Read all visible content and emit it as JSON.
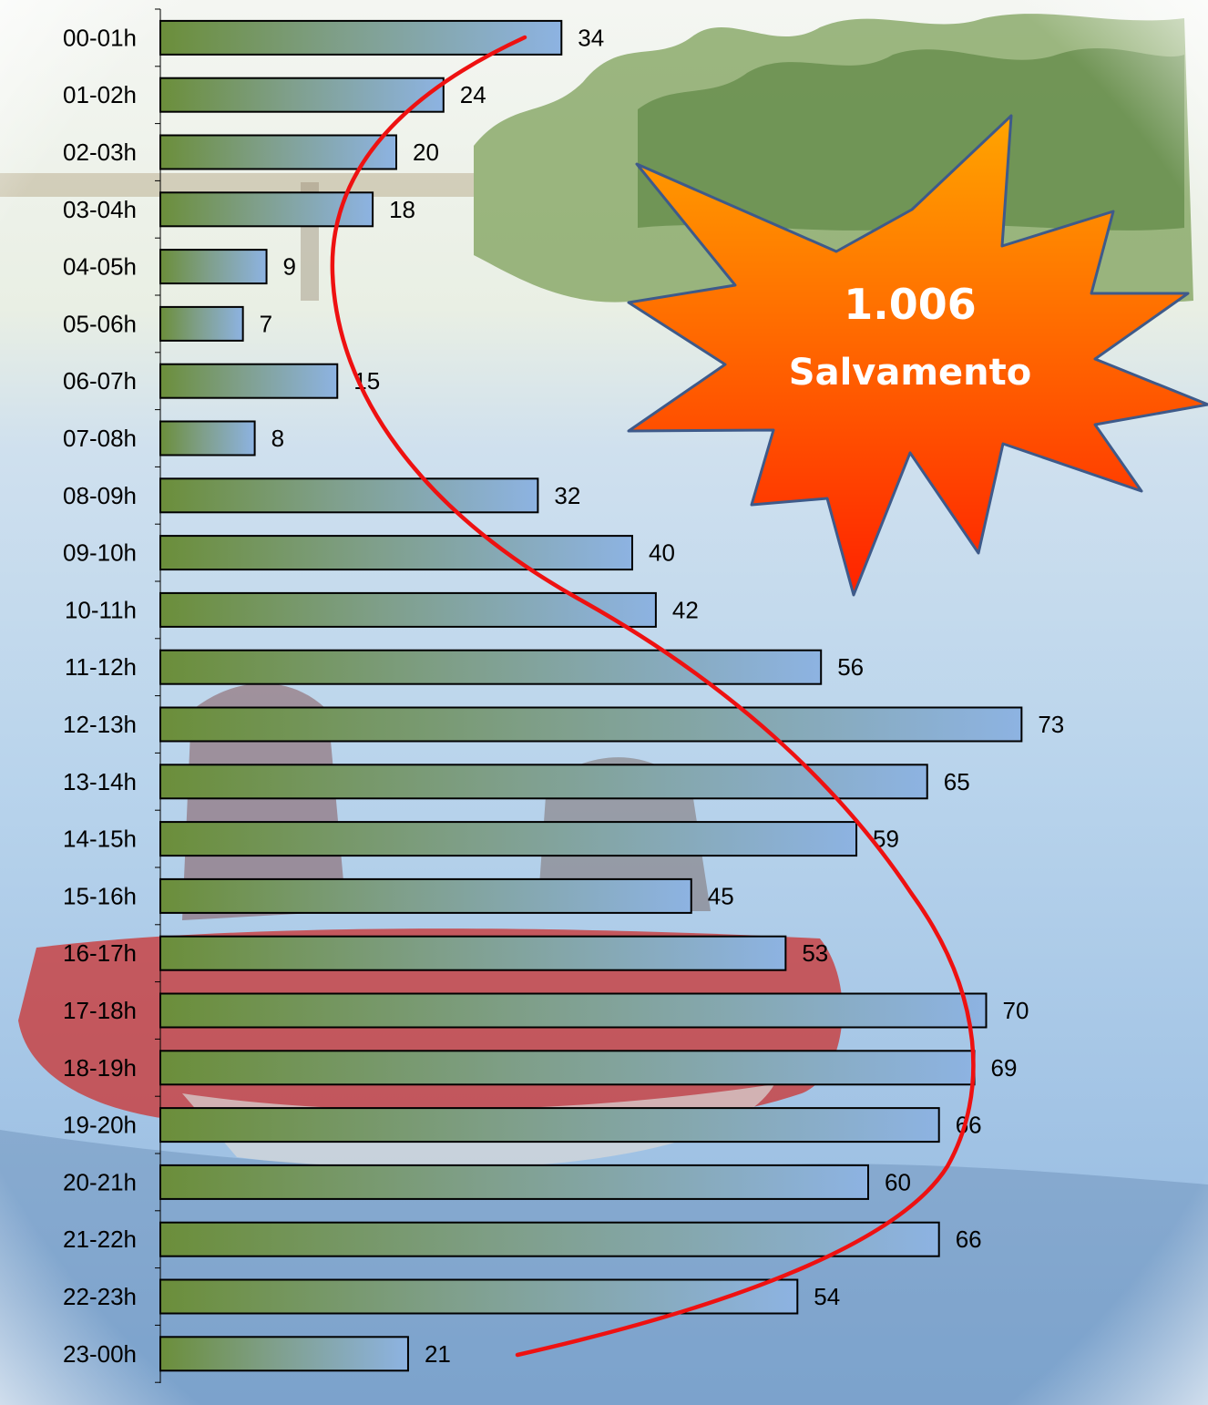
{
  "chart_data": {
    "type": "bar",
    "orientation": "horizontal",
    "categories": [
      "00-01h",
      "01-02h",
      "02-03h",
      "03-04h",
      "04-05h",
      "05-06h",
      "06-07h",
      "07-08h",
      "08-09h",
      "09-10h",
      "10-11h",
      "11-12h",
      "12-13h",
      "13-14h",
      "14-15h",
      "15-16h",
      "16-17h",
      "17-18h",
      "18-19h",
      "19-20h",
      "20-21h",
      "21-22h",
      "22-23h",
      "23-00h"
    ],
    "values": [
      34,
      24,
      20,
      18,
      9,
      7,
      15,
      8,
      32,
      40,
      42,
      56,
      73,
      65,
      59,
      45,
      53,
      70,
      69,
      66,
      60,
      66,
      54,
      21
    ],
    "xlim": [
      0,
      80
    ],
    "grid": false,
    "legend": "none",
    "colors": {
      "bar_start": "#6b8e3a",
      "bar_end": "#8db3e2",
      "trend": "#ee1111",
      "burst_fill_top": "#ffa500",
      "burst_fill_bottom": "#ff2200",
      "burst_stroke": "#3e5a8a"
    }
  },
  "callout": {
    "line1": "1.006",
    "line2": "Salvamento"
  }
}
